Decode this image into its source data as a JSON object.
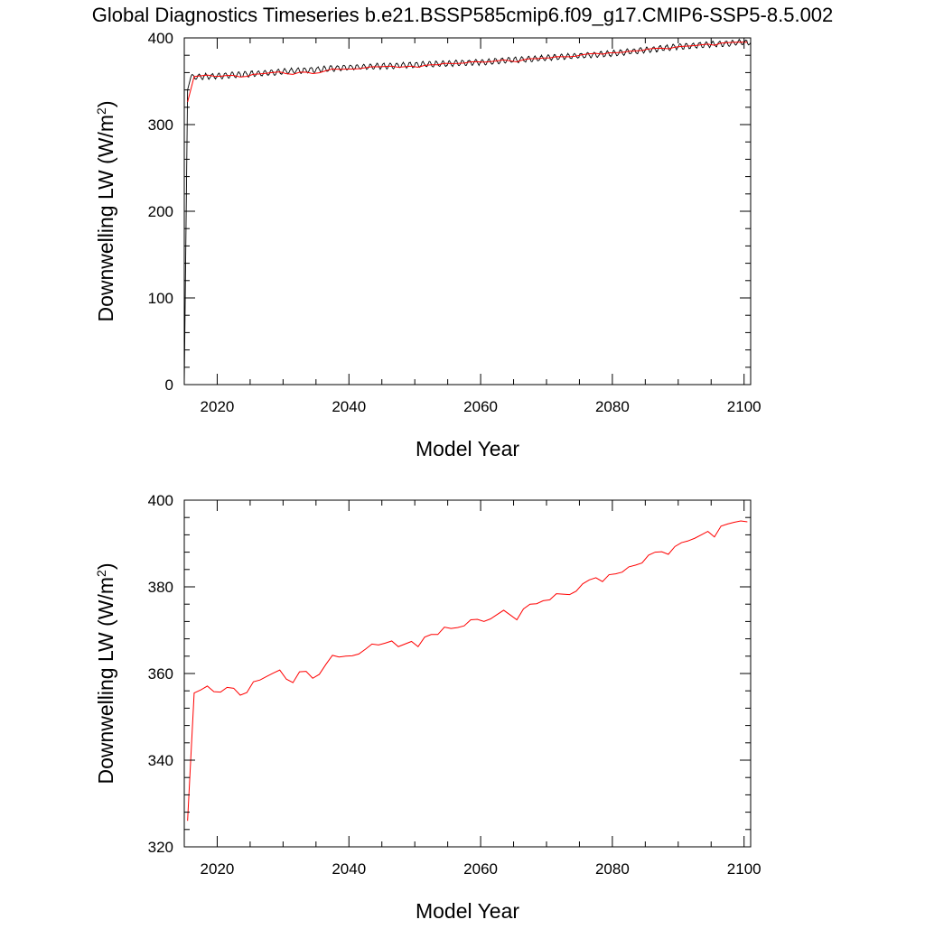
{
  "title": "Global Diagnostics Timeseries b.e21.BSSP585cmip6.f09_g17.CMIP6-SSP5-8.5.002",
  "colors": {
    "monthly": "#000000",
    "annual": "#ff0000",
    "frame": "#000000",
    "background": "#ffffff"
  },
  "chart_data": [
    {
      "type": "line",
      "xlabel": "Model Year",
      "ylabel": "Downwelling LW (W/m",
      "ylabel_superscript": "2",
      "ylabel_suffix": ")",
      "xlim": [
        2015,
        2101
      ],
      "ylim": [
        0,
        400
      ],
      "xticks": [
        2020,
        2040,
        2060,
        2080,
        2100
      ],
      "yticks": [
        0,
        100,
        200,
        300,
        400
      ],
      "xtick_labels": [
        "2020",
        "2040",
        "2060",
        "2080",
        "2100"
      ],
      "ytick_labels": [
        "0",
        "100",
        "200",
        "300",
        "400"
      ],
      "series": [
        {
          "kind": "monthly",
          "color": "#000000",
          "description_points": [
            [
              2015.0,
              0
            ],
            [
              2015.5,
              340
            ],
            [
              2016.0,
              355
            ],
            [
              2020,
              356
            ],
            [
              2030,
              361
            ],
            [
              2040,
              366
            ],
            [
              2050,
              369
            ],
            [
              2060,
              372
            ],
            [
              2070,
              377
            ],
            [
              2080,
              382
            ],
            [
              2090,
              390
            ],
            [
              2100,
              395
            ]
          ],
          "seasonal_amplitude": 3
        },
        {
          "kind": "annual",
          "color": "#ff0000",
          "ref": "annual_means"
        }
      ]
    },
    {
      "type": "line",
      "xlabel": "Model Year",
      "ylabel": "Downwelling LW (W/m",
      "ylabel_superscript": "2",
      "ylabel_suffix": ")",
      "xlim": [
        2015,
        2101
      ],
      "ylim": [
        320,
        400
      ],
      "xticks": [
        2020,
        2040,
        2060,
        2080,
        2100
      ],
      "yticks": [
        320,
        340,
        360,
        380,
        400
      ],
      "xtick_labels": [
        "2020",
        "2040",
        "2060",
        "2080",
        "2100"
      ],
      "ytick_labels": [
        "320",
        "340",
        "360",
        "380",
        "400"
      ],
      "series": [
        {
          "kind": "annual",
          "color": "#ff0000",
          "ref": "annual_means"
        }
      ]
    }
  ],
  "annual_means": {
    "x": [
      2015.5,
      2016.5,
      2017.5,
      2018.5,
      2019.5,
      2020.5,
      2021.5,
      2022.5,
      2023.5,
      2024.5,
      2025.5,
      2026.5,
      2027.5,
      2028.5,
      2029.5,
      2030.5,
      2031.5,
      2032.5,
      2033.5,
      2034.5,
      2035.5,
      2036.5,
      2037.5,
      2038.5,
      2039.5,
      2040.5,
      2041.5,
      2042.5,
      2043.5,
      2044.5,
      2045.5,
      2046.5,
      2047.5,
      2048.5,
      2049.5,
      2050.5,
      2051.5,
      2052.5,
      2053.5,
      2054.5,
      2055.5,
      2056.5,
      2057.5,
      2058.5,
      2059.5,
      2060.5,
      2061.5,
      2062.5,
      2063.5,
      2064.5,
      2065.5,
      2066.5,
      2067.5,
      2068.5,
      2069.5,
      2070.5,
      2071.5,
      2072.5,
      2073.5,
      2074.5,
      2075.5,
      2076.5,
      2077.5,
      2078.5,
      2079.5,
      2080.5,
      2081.5,
      2082.5,
      2083.5,
      2084.5,
      2085.5,
      2086.5,
      2087.5,
      2088.5,
      2089.5,
      2090.5,
      2091.5,
      2092.5,
      2093.5,
      2094.5,
      2095.5,
      2096.5,
      2097.5,
      2098.5,
      2099.5,
      2100.5
    ],
    "y": [
      326,
      355.5,
      356.2,
      357.1,
      355.8,
      355.7,
      356.8,
      356.6,
      355.0,
      355.6,
      358.1,
      358.5,
      359.3,
      360.1,
      360.8,
      358.7,
      357.9,
      360.4,
      360.5,
      358.9,
      359.8,
      362.1,
      364.2,
      363.8,
      364.0,
      364.1,
      364.5,
      365.6,
      366.8,
      366.6,
      367.0,
      367.5,
      366.2,
      366.8,
      367.4,
      366.2,
      368.4,
      369.0,
      369.0,
      370.7,
      370.4,
      370.6,
      371.0,
      372.4,
      372.5,
      372.0,
      372.6,
      373.6,
      374.6,
      373.5,
      372.4,
      374.9,
      376.0,
      376.1,
      376.8,
      377.0,
      378.4,
      378.3,
      378.2,
      379.0,
      380.7,
      381.6,
      382.1,
      381.2,
      382.8,
      383.0,
      383.4,
      384.6,
      385.0,
      385.5,
      387.3,
      388.0,
      388.1,
      387.5,
      389.3,
      390.2,
      390.6,
      391.2,
      392.0,
      392.8,
      391.5,
      394.0,
      394.5,
      394.9,
      395.2,
      395.0
    ]
  }
}
